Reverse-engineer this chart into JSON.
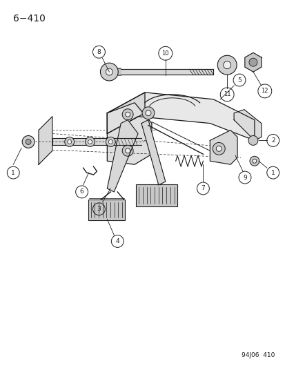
{
  "title": "6−410",
  "footer": "94J06  410",
  "bg_color": "#ffffff",
  "line_color": "#1a1a1a",
  "title_fontsize": 10,
  "footer_fontsize": 6.5,
  "fig_width": 4.14,
  "fig_height": 5.33,
  "dpi": 100
}
